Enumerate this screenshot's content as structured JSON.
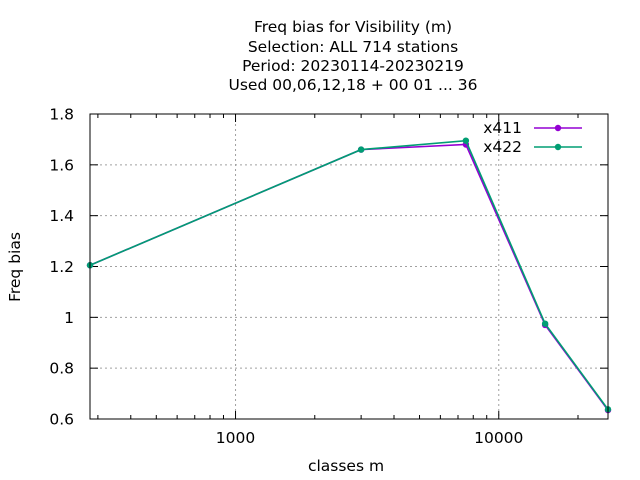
{
  "chart_data": {
    "type": "line",
    "title_lines": [
      "Freq bias  for Visibility (m)",
      "Selection: ALL    714 stations",
      "Period: 20230114-20230219",
      "Used  00,06,12,18 + 00 01 ... 36"
    ],
    "xlabel": "classes m",
    "ylabel": "Freq bias",
    "x_scale": "log",
    "xlim": [
      280,
      26000
    ],
    "ylim": [
      0.6,
      1.8
    ],
    "x_major_ticks": [
      1000,
      10000
    ],
    "x_tick_labels": [
      "1000",
      "10000"
    ],
    "y_ticks": [
      0.6,
      0.8,
      1,
      1.2,
      1.4,
      1.6,
      1.8
    ],
    "y_tick_labels": [
      "0.6",
      "0.8",
      "1",
      "1.2",
      "1.4",
      "1.6",
      "1.8"
    ],
    "grid": true,
    "legend_position": "top-right",
    "series": [
      {
        "name": "x411",
        "color": "#9400d3",
        "x": [
          280,
          3000,
          7500,
          15000,
          26000
        ],
        "y": [
          1.205,
          1.66,
          1.68,
          0.97,
          0.635
        ]
      },
      {
        "name": "x422",
        "color": "#009e73",
        "x": [
          280,
          3000,
          7500,
          15000,
          26000
        ],
        "y": [
          1.205,
          1.66,
          1.695,
          0.975,
          0.638
        ]
      }
    ]
  }
}
